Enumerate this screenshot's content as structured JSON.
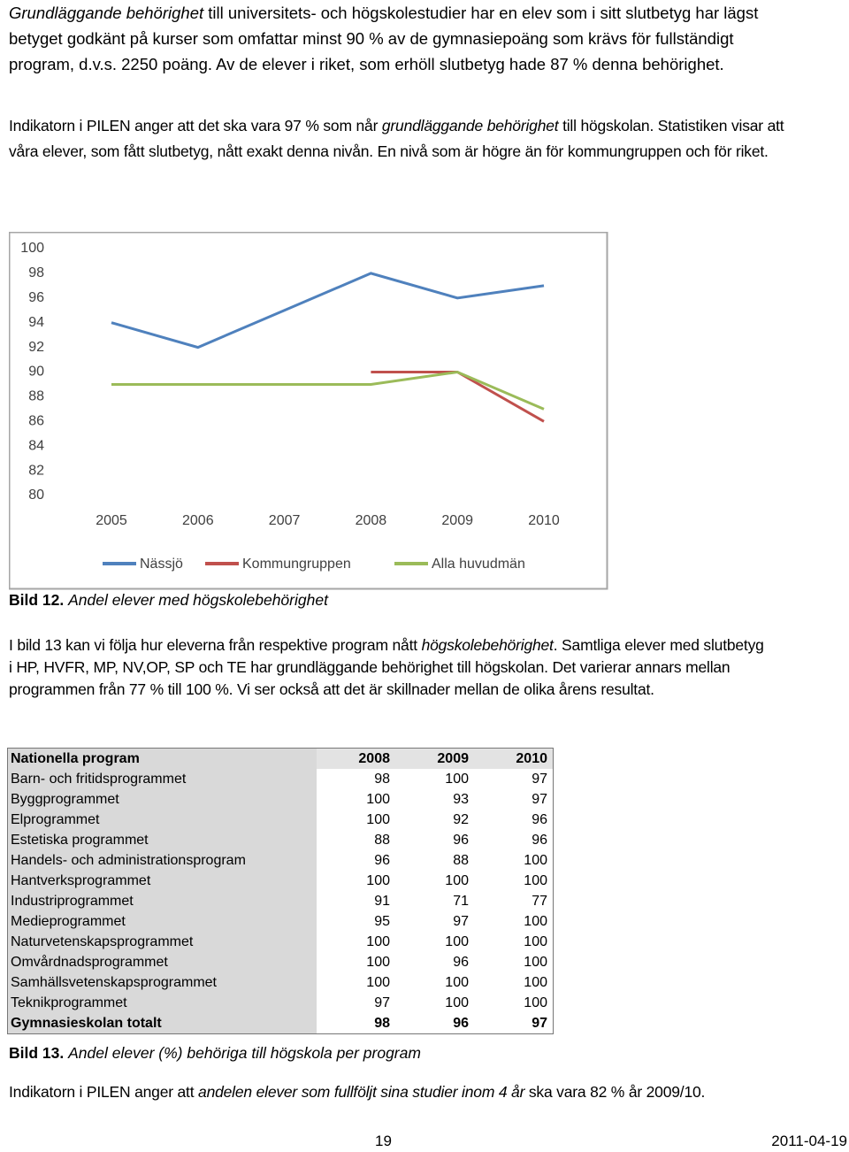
{
  "intro": [
    {
      "text": "Grundläggande behörighet",
      "italic": true
    },
    {
      "text": " till universitets- och högskolestudier har en elev som i sitt slutbetyg har lägst betyget godkänt på kurser som omfattar minst 90 % av de gymnasiepoäng som krävs för fullständigt program, d.v.s. 2250 poäng. Av de elever i riket, som erhöll slutbetyg hade 87 % denna behörighet.",
      "italic": false
    }
  ],
  "indicator": [
    {
      "text": "Indikatorn i PILEN anger att det ska vara 97 %  som når ",
      "italic": false
    },
    {
      "text": "grundläggande behörighet",
      "italic": true
    },
    {
      "text": " till högskolan. Statistiken visar att våra elever, som fått slutbetyg, nått exakt denna nivån.  En nivå som är högre än för kommungruppen och för riket.",
      "italic": false
    }
  ],
  "chart_data": {
    "type": "line",
    "categories": [
      "2005",
      "2006",
      "2007",
      "2008",
      "2009",
      "2010"
    ],
    "series": [
      {
        "name": "Nässjö",
        "color": "#4f81bd",
        "values": [
          94,
          92,
          95,
          98,
          96,
          97
        ]
      },
      {
        "name": "Kommungruppen",
        "color": "#c0504d",
        "values": [
          null,
          null,
          null,
          90,
          90,
          86
        ]
      },
      {
        "name": "Alla huvudmän",
        "color": "#9bbb59",
        "values": [
          89,
          89,
          89,
          89,
          90,
          87
        ]
      }
    ],
    "ylim": [
      80,
      100
    ],
    "yticks": [
      80,
      82,
      84,
      86,
      88,
      90,
      92,
      94,
      96,
      98,
      100
    ],
    "legend": "bottom"
  },
  "caption12": {
    "label": "Bild 12.",
    "text": "Andel elever med högskolebehörighet"
  },
  "paragraph13": [
    {
      "text": "I bild 13 kan vi följa hur eleverna från respektive program nått ",
      "italic": false
    },
    {
      "text": "högskolebehörighet",
      "italic": true
    },
    {
      "text": ". Samtliga elever med slutbetyg i HP, HVFR, MP, NV,OP,  SP och TE har grundläggande behörighet till högskolan. Det varierar annars mellan programmen från 77 % till 100 %. Vi ser också att det är skillnader mellan de olika årens resultat.",
      "italic": false
    }
  ],
  "table": {
    "header": [
      "Nationella program",
      "2008",
      "2009",
      "2010"
    ],
    "rows": [
      [
        "Barn- och fritidsprogrammet",
        98,
        100,
        97
      ],
      [
        "Byggprogrammet",
        100,
        93,
        97
      ],
      [
        "Elprogrammet",
        100,
        92,
        96
      ],
      [
        "Estetiska programmet",
        88,
        96,
        96
      ],
      [
        "Handels- och administrationsprogram",
        96,
        88,
        100
      ],
      [
        "Hantverksprogrammet",
        100,
        100,
        100
      ],
      [
        "Industriprogrammet",
        91,
        71,
        77
      ],
      [
        "Medieprogrammet",
        95,
        97,
        100
      ],
      [
        "Naturvetenskapsprogrammet",
        100,
        100,
        100
      ],
      [
        "Omvårdnadsprogrammet",
        100,
        96,
        100
      ],
      [
        "Samhällsvetenskapsprogrammet",
        100,
        100,
        100
      ],
      [
        "Teknikprogrammet",
        97,
        100,
        100
      ]
    ],
    "total": [
      "Gymnasieskolan totalt",
      98,
      96,
      97
    ]
  },
  "caption13": {
    "label": "Bild 13.",
    "text": "Andel elever (%) behöriga till högskola per program"
  },
  "closing": [
    {
      "text": "Indikatorn i PILEN anger att ",
      "italic": false
    },
    {
      "text": "andelen elever som fullföljt sina studier inom 4 år",
      "italic": true
    },
    {
      "text": " ska vara 82 % år 2009/10.",
      "italic": false
    }
  ],
  "footer": {
    "page": "19",
    "date": "2011-04-19"
  }
}
